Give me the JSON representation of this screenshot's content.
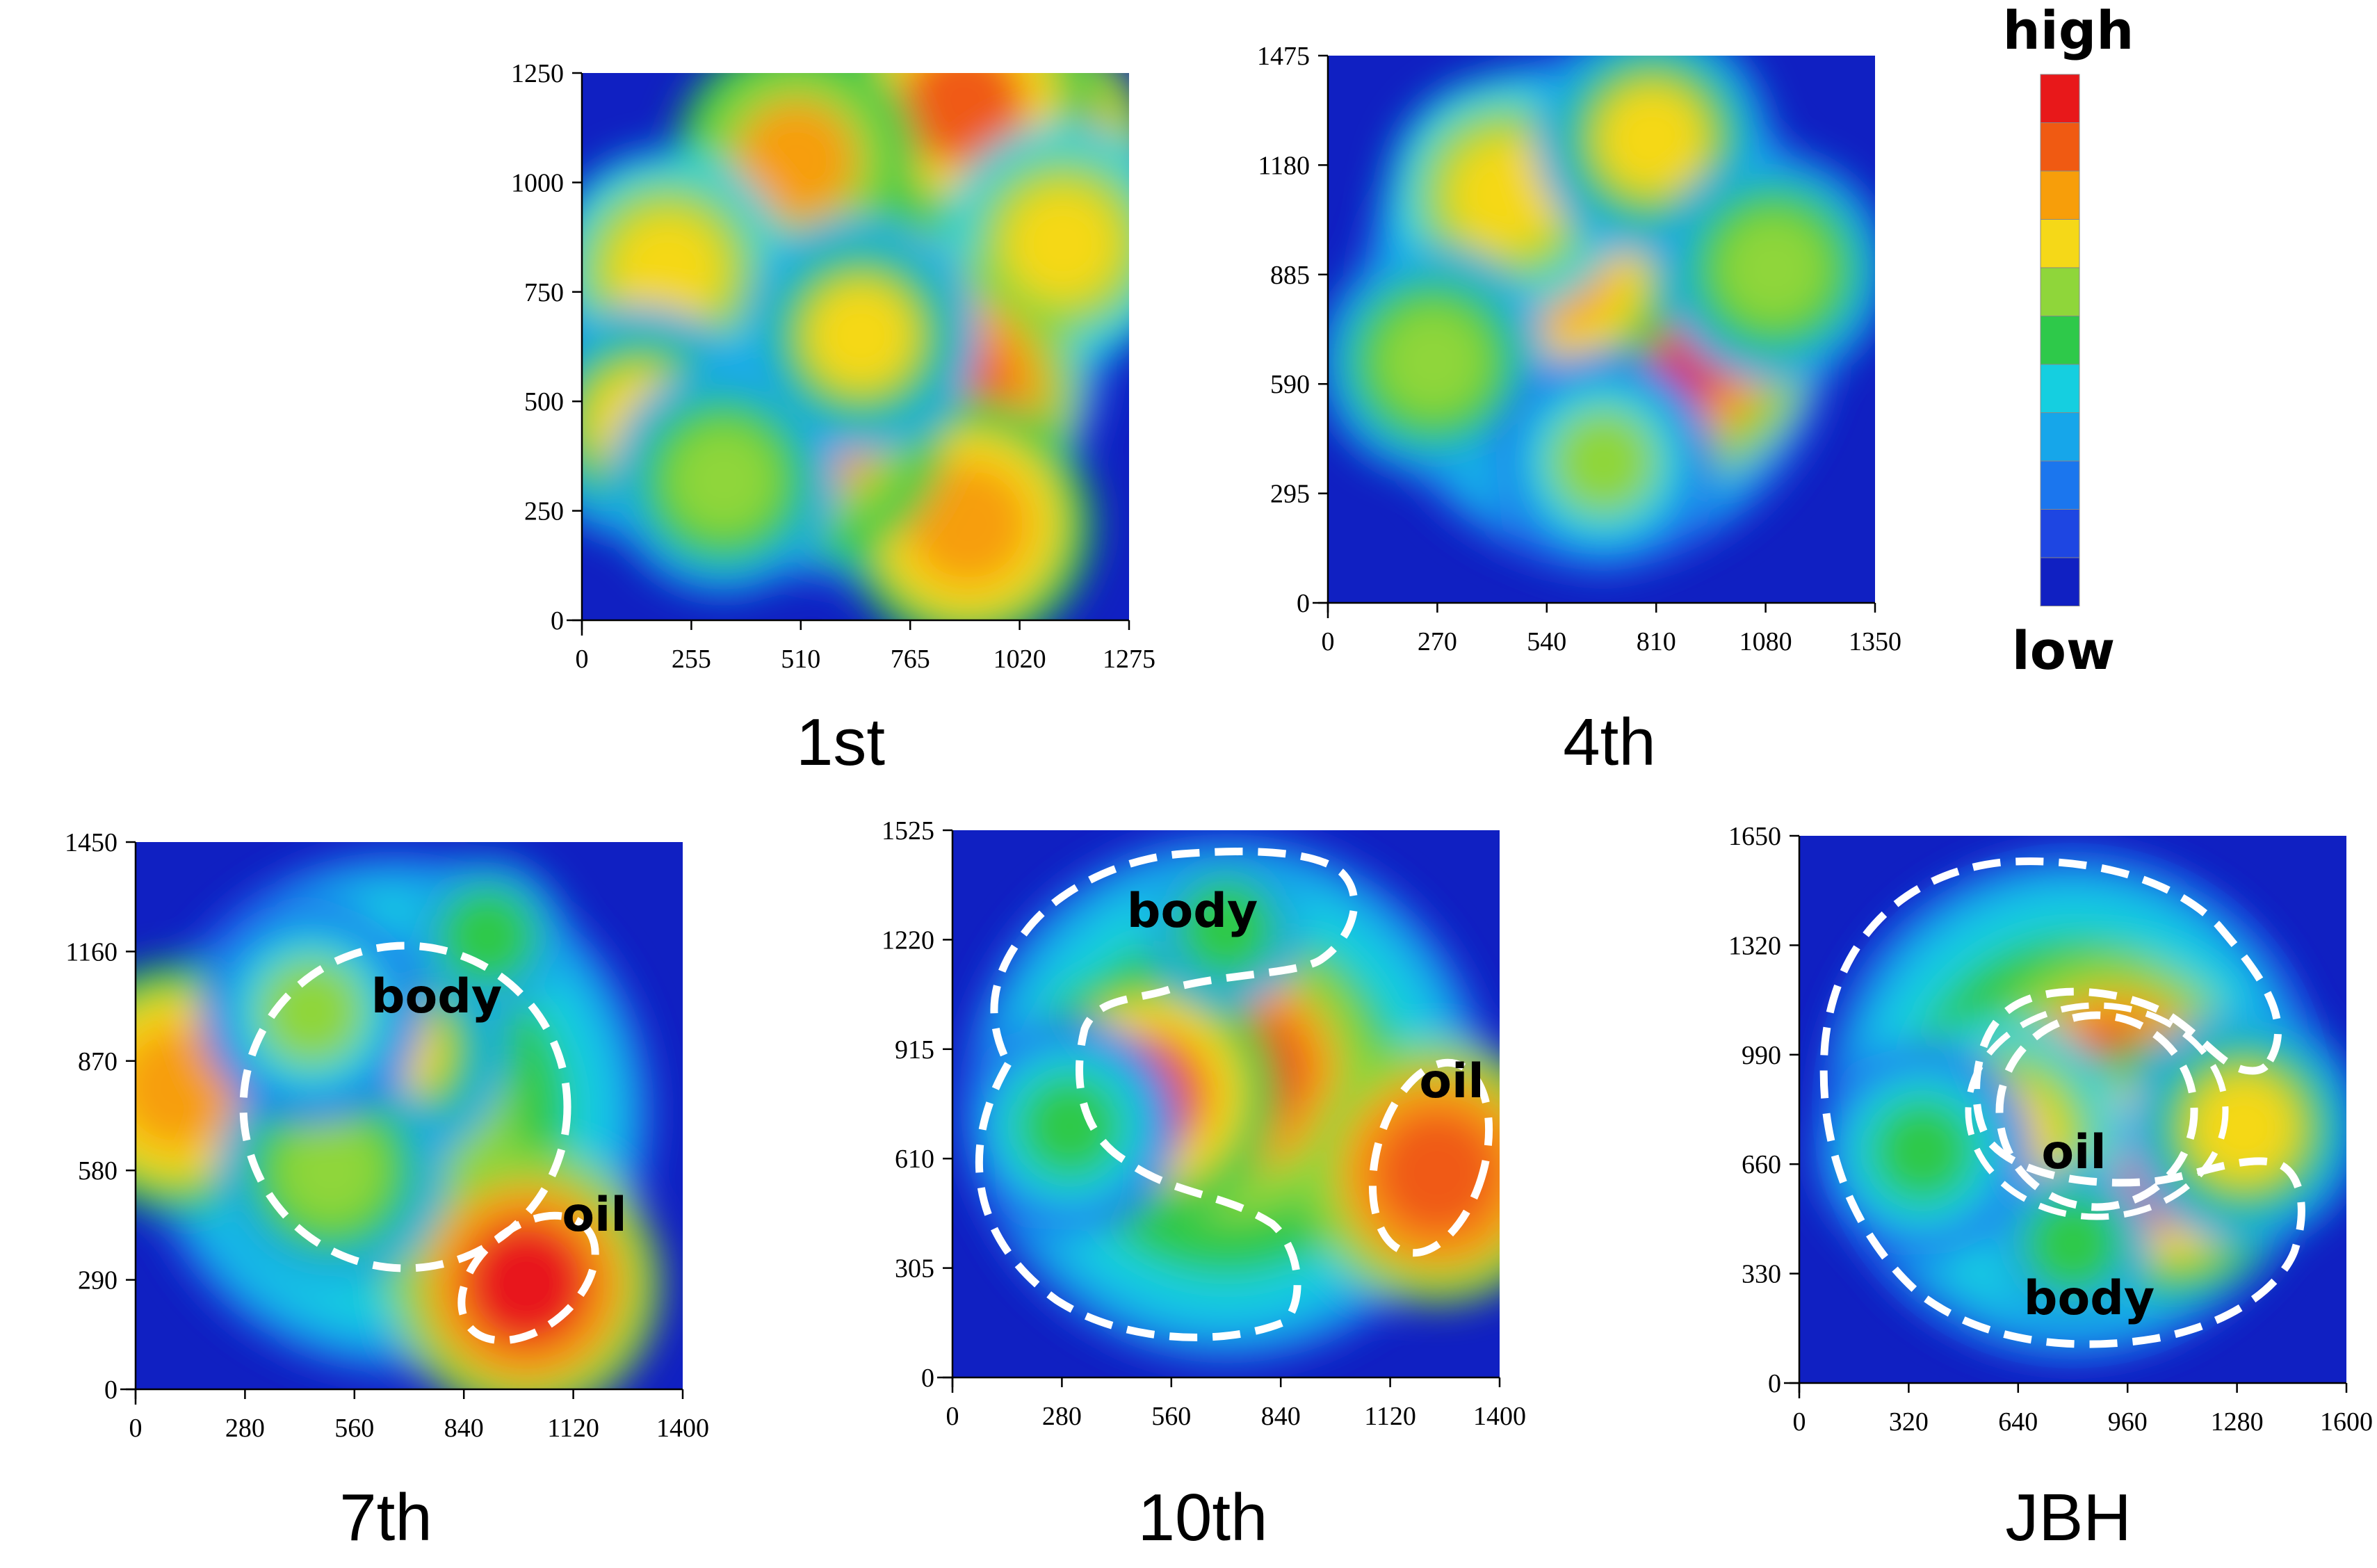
{
  "chart_data": [
    {
      "type": "heatmap",
      "title": "1st",
      "x_ticks": [
        "0",
        "255",
        "510",
        "765",
        "1020",
        "1275"
      ],
      "y_ticks": [
        "0",
        "250",
        "500",
        "750",
        "1000",
        "1250"
      ],
      "xlim": [
        0,
        1275
      ],
      "ylim": [
        0,
        1250
      ],
      "annotations": [],
      "hotspots": [
        {
          "x": 1020,
          "y": 1050,
          "level": 1.0
        },
        {
          "x": 890,
          "y": 1180,
          "level": 0.9
        },
        {
          "x": 1120,
          "y": 860,
          "level": 0.75
        },
        {
          "x": 850,
          "y": 520,
          "level": 0.95
        },
        {
          "x": 900,
          "y": 220,
          "level": 0.85
        },
        {
          "x": 560,
          "y": 420,
          "level": 0.8
        },
        {
          "x": 500,
          "y": 1050,
          "level": 0.8
        },
        {
          "x": 200,
          "y": 800,
          "level": 0.75
        },
        {
          "x": 140,
          "y": 450,
          "level": 0.7
        },
        {
          "x": 330,
          "y": 320,
          "level": 0.65
        },
        {
          "x": 650,
          "y": 650,
          "level": 0.7
        }
      ]
    },
    {
      "type": "heatmap",
      "title": "4th",
      "x_ticks": [
        "0",
        "270",
        "540",
        "810",
        "1080",
        "1350"
      ],
      "y_ticks": [
        "0",
        "295",
        "590",
        "885",
        "1180",
        "1475"
      ],
      "xlim": [
        0,
        1350
      ],
      "ylim": [
        0,
        1475
      ],
      "annotations": [],
      "hotspots": [
        {
          "x": 860,
          "y": 700,
          "level": 1.0
        },
        {
          "x": 560,
          "y": 900,
          "level": 0.85
        },
        {
          "x": 440,
          "y": 1100,
          "level": 0.75
        },
        {
          "x": 800,
          "y": 1250,
          "level": 0.7
        },
        {
          "x": 260,
          "y": 650,
          "level": 0.65
        },
        {
          "x": 1100,
          "y": 900,
          "level": 0.65
        },
        {
          "x": 680,
          "y": 380,
          "level": 0.6
        }
      ]
    },
    {
      "type": "heatmap",
      "title": "7th",
      "x_ticks": [
        "0",
        "280",
        "560",
        "840",
        "1120",
        "1400"
      ],
      "y_ticks": [
        "0",
        "290",
        "580",
        "870",
        "1160",
        "1450"
      ],
      "xlim": [
        0,
        1400
      ],
      "ylim": [
        0,
        1450
      ],
      "annotations": [
        "body",
        "oil"
      ],
      "hotspots": [
        {
          "x": 1000,
          "y": 280,
          "level": 1.0
        },
        {
          "x": 110,
          "y": 800,
          "level": 0.85
        },
        {
          "x": 650,
          "y": 900,
          "level": 0.7
        },
        {
          "x": 500,
          "y": 580,
          "level": 0.65
        },
        {
          "x": 450,
          "y": 1000,
          "level": 0.6
        },
        {
          "x": 900,
          "y": 1200,
          "level": 0.5
        }
      ]
    },
    {
      "type": "heatmap",
      "title": "10th",
      "x_ticks": [
        "0",
        "280",
        "560",
        "840",
        "1120",
        "1400"
      ],
      "y_ticks": [
        "0",
        "305",
        "610",
        "915",
        "1220",
        "1525"
      ],
      "xlim": [
        0,
        1400
      ],
      "ylim": [
        0,
        1525
      ],
      "annotations": [
        "body",
        "oil"
      ],
      "hotspots": [
        {
          "x": 730,
          "y": 850,
          "level": 1.0
        },
        {
          "x": 500,
          "y": 790,
          "level": 0.9
        },
        {
          "x": 1240,
          "y": 570,
          "level": 0.95
        },
        {
          "x": 300,
          "y": 700,
          "level": 0.55
        },
        {
          "x": 700,
          "y": 1250,
          "level": 0.5
        }
      ]
    },
    {
      "type": "heatmap",
      "title": "JBH",
      "x_ticks": [
        "0",
        "320",
        "640",
        "960",
        "1280",
        "1600"
      ],
      "y_ticks": [
        "0",
        "330",
        "660",
        "990",
        "1320",
        "1650"
      ],
      "xlim": [
        0,
        1600
      ],
      "ylim": [
        0,
        1650
      ],
      "annotations": [
        "oil",
        "body"
      ],
      "hotspots": [
        {
          "x": 920,
          "y": 880,
          "level": 1.0
        },
        {
          "x": 1080,
          "y": 650,
          "level": 0.9
        },
        {
          "x": 600,
          "y": 740,
          "level": 0.75
        },
        {
          "x": 1300,
          "y": 770,
          "level": 0.7
        },
        {
          "x": 360,
          "y": 700,
          "level": 0.55
        },
        {
          "x": 800,
          "y": 420,
          "level": 0.5
        }
      ]
    }
  ],
  "legend": {
    "high_label": "high",
    "low_label": "low",
    "colors": [
      "#e8181a",
      "#f05a12",
      "#f79e0a",
      "#f5d818",
      "#8fd63a",
      "#2ec94a",
      "#15cfe0",
      "#16a6ea",
      "#1b76ee",
      "#1e46e2",
      "#1020c2"
    ]
  }
}
